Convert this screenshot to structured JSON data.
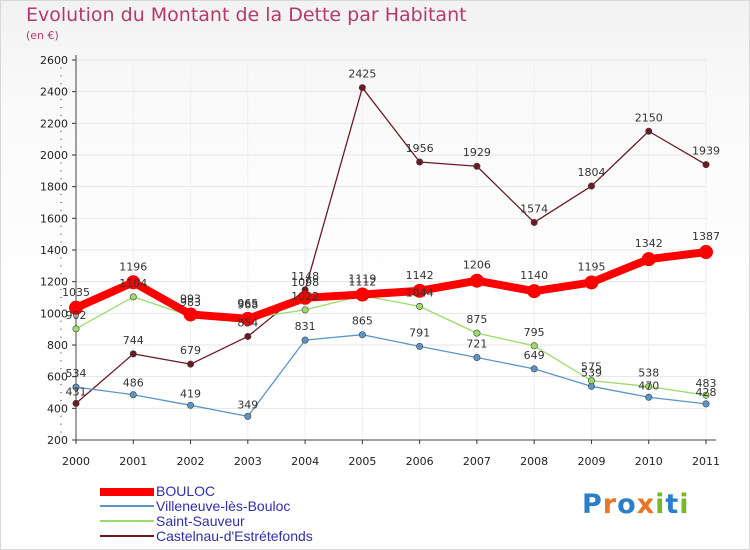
{
  "title": "Evolution du Montant de la Dette par Habitant",
  "subtitle": "(en €)",
  "logo": {
    "text": "Proxiti",
    "letters": [
      "P",
      "r",
      "o",
      "x",
      "i",
      "t",
      "i"
    ]
  },
  "colors": {
    "title": "#b5396d",
    "axis": "#444444",
    "legend_text": "#3030a8",
    "logo_letters": [
      "#2a7fc8",
      "#e8752a",
      "#2a7fc8",
      "#e8752a",
      "#78b82a",
      "#2a7fc8",
      "#78b82a"
    ]
  },
  "chart_data": {
    "type": "line",
    "title": "Evolution du Montant de la Dette par Habitant",
    "ylabel": "(en €)",
    "xlabel": "",
    "x": [
      "2000",
      "2001",
      "2002",
      "2003",
      "2004",
      "2005",
      "2006",
      "2007",
      "2008",
      "2009",
      "2010",
      "2011"
    ],
    "ylim": [
      200,
      2600
    ],
    "yticks": [
      "200",
      "400",
      "600",
      "800",
      "1000",
      "1200",
      "1400",
      "1600",
      "1800",
      "2000",
      "2200",
      "2400",
      "2600"
    ],
    "legend_position": "bottom-left",
    "series": [
      {
        "name": "Castelnau-d'Estrétefonds",
        "color": "#6b1a24",
        "values": [
          431,
          744,
          679,
          854,
          1148,
          2425,
          1956,
          1929,
          1574,
          1804,
          2150,
          1939
        ],
        "labels": [
          "431",
          "744",
          "679",
          "854",
          "1148",
          "2425",
          "1956",
          "1929",
          "1574",
          "1804",
          "2150",
          "1939"
        ]
      },
      {
        "name": "Villeneuve-lès-Bouloc",
        "color": "#5b95c6",
        "values": [
          534,
          486,
          419,
          349,
          831,
          865,
          791,
          721,
          649,
          539,
          470,
          428
        ],
        "labels": [
          "534",
          "486",
          "419",
          "349",
          "831",
          "865",
          "791",
          "721",
          "649",
          "539",
          "470",
          "428"
        ]
      },
      {
        "name": "Saint-Sauveur",
        "color": "#9adb6a",
        "values": [
          902,
          1104,
          983,
          968,
          1022,
          1112,
          1044,
          875,
          795,
          575,
          538,
          483
        ],
        "labels": [
          "902",
          "1104",
          "983",
          "968",
          "1022",
          "1112",
          "1044",
          "875",
          "795",
          "575",
          "538",
          "483"
        ]
      },
      {
        "name": "BOULOC",
        "color": "#ff0000",
        "values": [
          1035,
          1196,
          993,
          965,
          1098,
          1119,
          1142,
          1206,
          1140,
          1195,
          1342,
          1387
        ],
        "labels": [
          "1035",
          "1196",
          "993",
          "965",
          "1098",
          "1119",
          "1142",
          "1206",
          "1140",
          "1195",
          "1342",
          "1387"
        ]
      }
    ]
  },
  "legend": [
    {
      "name": "BOULOC",
      "color": "#ff0000"
    },
    {
      "name": "Villeneuve-lès-Bouloc",
      "color": "#5b95c6"
    },
    {
      "name": "Saint-Sauveur",
      "color": "#9adb6a"
    },
    {
      "name": "Castelnau-d'Estrétefonds",
      "color": "#6b1a24"
    }
  ]
}
